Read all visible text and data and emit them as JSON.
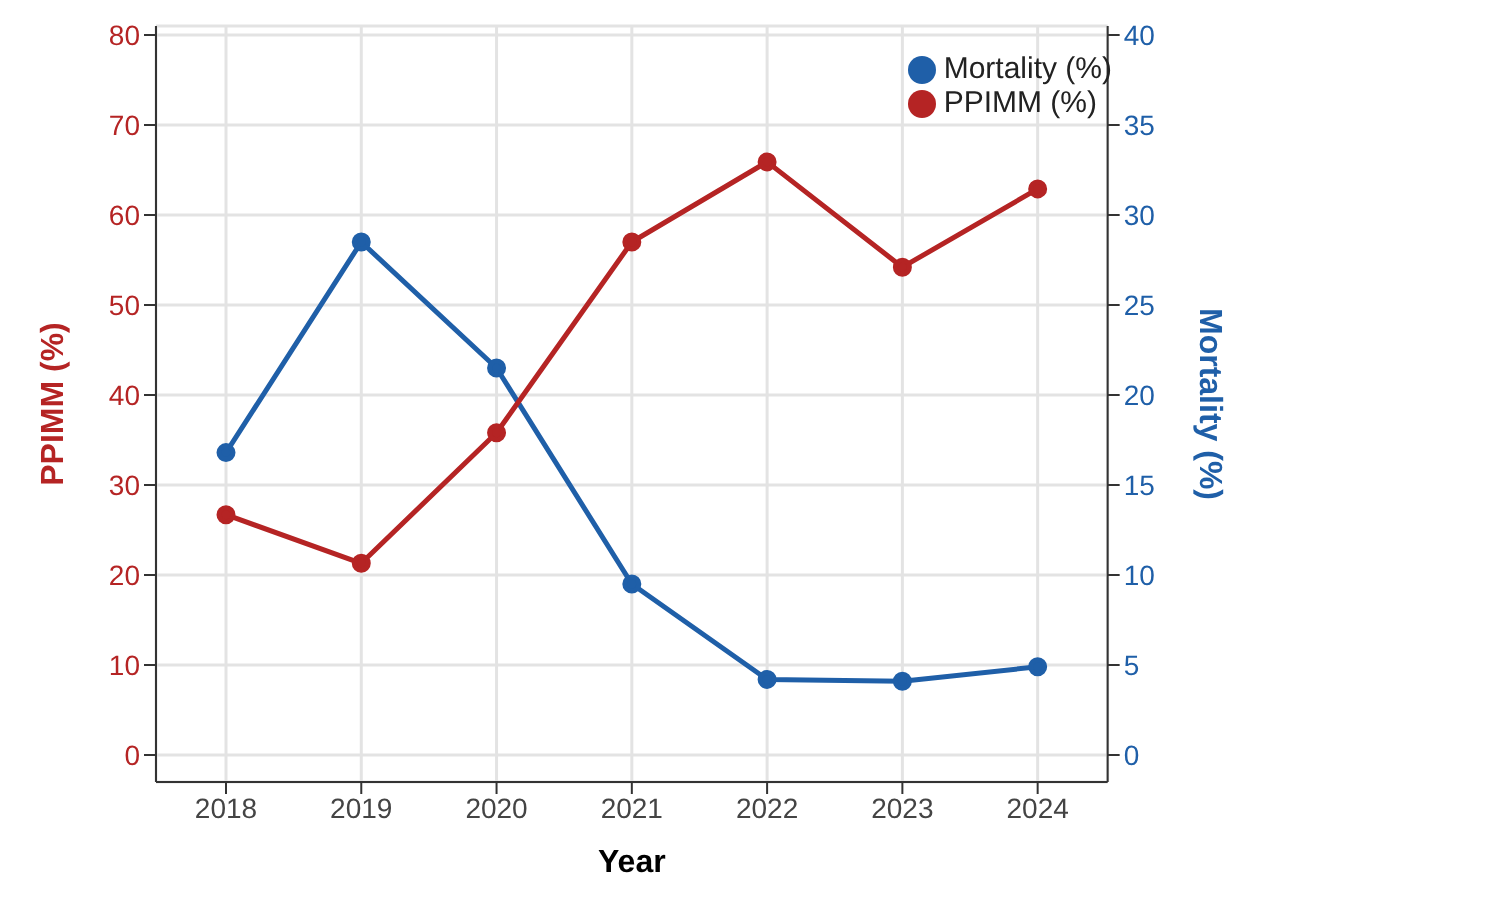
{
  "chart_data": {
    "type": "line",
    "xlabel": "Year",
    "ylabel": "PPIMM (%)",
    "y2label": "Mortality (%)",
    "categories": [
      "2018",
      "2019",
      "2020",
      "2021",
      "2022",
      "2023",
      "2024"
    ],
    "series": [
      {
        "name": "Mortality (%)",
        "color": "#1f5fa8",
        "axis": "y2",
        "values": [
          16.8,
          28.5,
          21.5,
          9.5,
          4.2,
          4.1,
          4.9
        ]
      },
      {
        "name": "PPIMM (%)",
        "color": "#b52424",
        "values": [
          26.7,
          21.3,
          35.8,
          57.0,
          65.9,
          54.2,
          62.9
        ]
      }
    ],
    "ylim": [
      -3,
      81
    ],
    "yticks": [
      0,
      10,
      20,
      30,
      40,
      50,
      60,
      70,
      80
    ],
    "y2lim": [
      -1.5,
      40.5
    ],
    "y2ticks": [
      0,
      5,
      10,
      15,
      20,
      25,
      30,
      35,
      40
    ],
    "grid": true,
    "legend": "top right",
    "marker": "circle",
    "line_style": "solid"
  }
}
